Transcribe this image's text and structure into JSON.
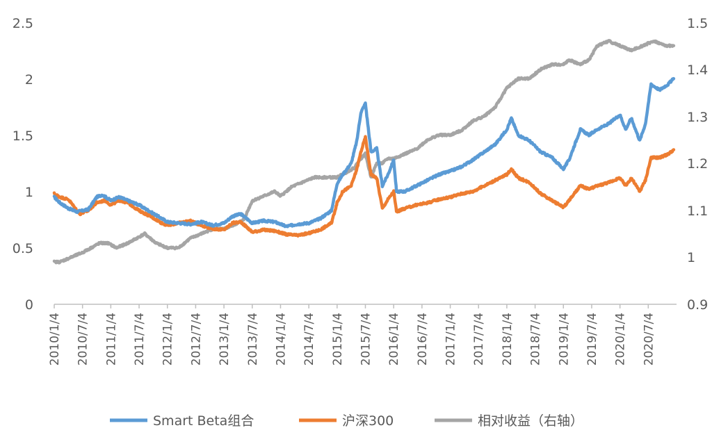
{
  "chart_data": {
    "type": "line",
    "title": "",
    "xlabel": "",
    "ylabel": "",
    "y_left_lim": [
      0,
      2.5
    ],
    "y_right_lim": [
      0.9,
      1.5
    ],
    "y_left_ticks": [
      "0",
      "0.5",
      "1",
      "1.5",
      "2",
      "2.5"
    ],
    "y_right_ticks": [
      "0.9",
      "1",
      "1.1",
      "1.2",
      "1.3",
      "1.4",
      "1.5"
    ],
    "x_ticks": [
      "2010/1/4",
      "2010/7/4",
      "2011/1/4",
      "2011/7/4",
      "2012/1/4",
      "2012/7/4",
      "2013/1/4",
      "2013/7/4",
      "2014/1/4",
      "2014/7/4",
      "2015/1/4",
      "2015/7/4",
      "2016/1/4",
      "2016/7/4",
      "2017/1/4",
      "2017/7/4",
      "2018/1/4",
      "2018/7/4",
      "2019/1/4",
      "2019/7/4",
      "2020/1/4",
      "2020/7/4"
    ],
    "x_range": [
      2010.0,
      2021.0
    ],
    "legend_position": "bottom",
    "colors": {
      "smart_beta": "#5b9bd5",
      "hs300": "#ed7d31",
      "relative": "#a5a5a5",
      "axis": "#bfbfbf"
    },
    "series": [
      {
        "name": "Smart Beta组合",
        "axis": "left",
        "color": "#5b9bd5",
        "x": [
          2010.0,
          2010.1,
          2010.25,
          2010.4,
          2010.6,
          2010.75,
          2010.85,
          2011.0,
          2011.15,
          2011.3,
          2011.5,
          2011.7,
          2011.9,
          2012.0,
          2012.2,
          2012.4,
          2012.6,
          2012.8,
          2013.0,
          2013.15,
          2013.3,
          2013.5,
          2013.7,
          2013.9,
          2014.1,
          2014.3,
          2014.5,
          2014.7,
          2014.9,
          2015.0,
          2015.1,
          2015.25,
          2015.35,
          2015.42,
          2015.5,
          2015.6,
          2015.7,
          2015.8,
          2015.9,
          2016.0,
          2016.05,
          2016.2,
          2016.4,
          2016.6,
          2016.8,
          2017.0,
          2017.2,
          2017.4,
          2017.6,
          2017.8,
          2018.0,
          2018.08,
          2018.2,
          2018.4,
          2018.6,
          2018.8,
          2019.0,
          2019.1,
          2019.3,
          2019.45,
          2019.6,
          2019.8,
          2020.0,
          2020.1,
          2020.2,
          2020.35,
          2020.45,
          2020.55,
          2020.7,
          2020.85,
          2020.95
        ],
        "y": [
          0.95,
          0.9,
          0.85,
          0.82,
          0.84,
          0.95,
          0.97,
          0.92,
          0.95,
          0.92,
          0.88,
          0.82,
          0.76,
          0.73,
          0.72,
          0.71,
          0.73,
          0.7,
          0.72,
          0.78,
          0.8,
          0.72,
          0.74,
          0.73,
          0.69,
          0.71,
          0.72,
          0.76,
          0.83,
          1.07,
          1.15,
          1.25,
          1.45,
          1.7,
          1.78,
          1.35,
          1.38,
          1.05,
          1.15,
          1.28,
          1.0,
          1.0,
          1.05,
          1.1,
          1.15,
          1.18,
          1.22,
          1.28,
          1.35,
          1.42,
          1.55,
          1.65,
          1.5,
          1.45,
          1.35,
          1.3,
          1.2,
          1.28,
          1.55,
          1.5,
          1.55,
          1.6,
          1.68,
          1.55,
          1.65,
          1.45,
          1.6,
          1.95,
          1.9,
          1.95,
          2.0
        ]
      },
      {
        "name": "沪深300",
        "axis": "left",
        "color": "#ed7d31",
        "x": [
          2010.0,
          2010.1,
          2010.25,
          2010.45,
          2010.6,
          2010.75,
          2010.9,
          2011.0,
          2011.15,
          2011.3,
          2011.5,
          2011.7,
          2011.9,
          2012.0,
          2012.2,
          2012.4,
          2012.6,
          2012.8,
          2013.0,
          2013.15,
          2013.3,
          2013.5,
          2013.7,
          2013.9,
          2014.1,
          2014.3,
          2014.5,
          2014.7,
          2014.9,
          2015.0,
          2015.1,
          2015.25,
          2015.35,
          2015.42,
          2015.5,
          2015.6,
          2015.7,
          2015.8,
          2015.9,
          2016.0,
          2016.05,
          2016.2,
          2016.4,
          2016.6,
          2016.8,
          2017.0,
          2017.2,
          2017.4,
          2017.6,
          2017.8,
          2018.0,
          2018.08,
          2018.2,
          2018.4,
          2018.6,
          2018.8,
          2019.0,
          2019.1,
          2019.3,
          2019.45,
          2019.6,
          2019.8,
          2020.0,
          2020.1,
          2020.2,
          2020.35,
          2020.45,
          2020.55,
          2020.7,
          2020.85,
          2020.95
        ],
        "y": [
          0.98,
          0.95,
          0.93,
          0.8,
          0.83,
          0.9,
          0.92,
          0.88,
          0.92,
          0.9,
          0.83,
          0.78,
          0.72,
          0.7,
          0.72,
          0.74,
          0.7,
          0.67,
          0.66,
          0.72,
          0.73,
          0.64,
          0.66,
          0.65,
          0.62,
          0.61,
          0.63,
          0.66,
          0.72,
          0.9,
          1.0,
          1.05,
          1.2,
          1.35,
          1.48,
          1.15,
          1.12,
          0.85,
          0.93,
          1.0,
          0.82,
          0.85,
          0.88,
          0.9,
          0.93,
          0.95,
          0.98,
          1.0,
          1.05,
          1.1,
          1.15,
          1.2,
          1.12,
          1.08,
          0.98,
          0.92,
          0.86,
          0.92,
          1.05,
          1.02,
          1.05,
          1.08,
          1.12,
          1.05,
          1.12,
          1.0,
          1.1,
          1.3,
          1.3,
          1.33,
          1.37
        ]
      },
      {
        "name": "相对收益（右轴）",
        "axis": "right",
        "color": "#a5a5a5",
        "x": [
          2010.0,
          2010.1,
          2010.3,
          2010.5,
          2010.65,
          2010.8,
          2010.95,
          2011.1,
          2011.3,
          2011.45,
          2011.6,
          2011.8,
          2012.0,
          2012.2,
          2012.4,
          2012.6,
          2012.8,
          2013.0,
          2013.2,
          2013.35,
          2013.5,
          2013.7,
          2013.9,
          2014.0,
          2014.2,
          2014.4,
          2014.6,
          2014.8,
          2015.0,
          2015.15,
          2015.3,
          2015.42,
          2015.5,
          2015.6,
          2015.7,
          2015.8,
          2015.9,
          2016.0,
          2016.2,
          2016.4,
          2016.6,
          2016.8,
          2017.0,
          2017.2,
          2017.4,
          2017.6,
          2017.8,
          2018.0,
          2018.2,
          2018.4,
          2018.6,
          2018.8,
          2019.0,
          2019.1,
          2019.3,
          2019.45,
          2019.6,
          2019.8,
          2020.0,
          2020.2,
          2020.4,
          2020.6,
          2020.8,
          2020.95
        ],
        "y": [
          0.99,
          0.99,
          1.0,
          1.01,
          1.02,
          1.03,
          1.03,
          1.02,
          1.03,
          1.04,
          1.05,
          1.03,
          1.02,
          1.02,
          1.04,
          1.05,
          1.06,
          1.06,
          1.07,
          1.08,
          1.12,
          1.13,
          1.14,
          1.13,
          1.15,
          1.16,
          1.17,
          1.17,
          1.17,
          1.18,
          1.19,
          1.21,
          1.22,
          1.17,
          1.2,
          1.2,
          1.21,
          1.21,
          1.22,
          1.23,
          1.25,
          1.26,
          1.26,
          1.27,
          1.29,
          1.3,
          1.32,
          1.36,
          1.38,
          1.38,
          1.4,
          1.41,
          1.41,
          1.42,
          1.41,
          1.42,
          1.45,
          1.46,
          1.45,
          1.44,
          1.45,
          1.46,
          1.45,
          1.45
        ]
      }
    ]
  }
}
